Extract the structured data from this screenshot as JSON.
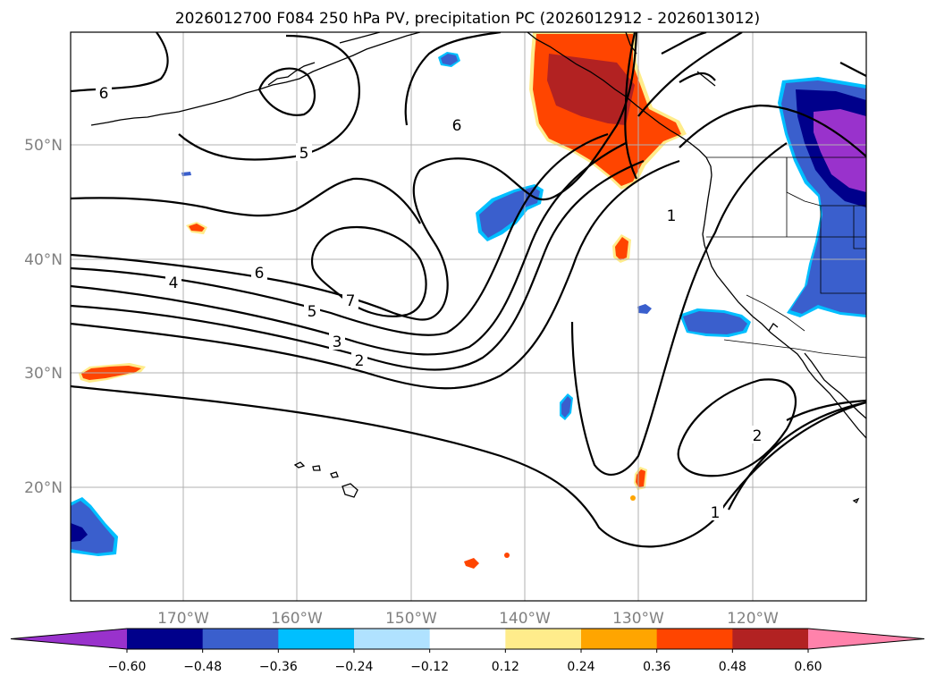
{
  "title": "2026012700 F084 250 hPa PV, precipitation PC (2026012912 - 2026013012)",
  "lat_labels": [
    "50°N",
    "40°N",
    "30°N",
    "20°N"
  ],
  "lon_labels": [
    "170°W",
    "160°W",
    "150°W",
    "140°W",
    "130°W",
    "120°W"
  ],
  "colorbar": {
    "ticks": [
      "−0.60",
      "−0.48",
      "−0.36",
      "−0.24",
      "−0.12",
      "0.12",
      "0.24",
      "0.36",
      "0.48",
      "0.60"
    ],
    "colors": [
      "#9932cc",
      "#00008b",
      "#3a5fcd",
      "#00bfff",
      "#b0e2ff",
      "#ffffff",
      "#ffec8b",
      "#ffa500",
      "#ff4500",
      "#b22222",
      "#ff82ab"
    ]
  },
  "contour_labels": [
    "6",
    "5",
    "6",
    "4",
    "6",
    "7",
    "5",
    "3",
    "2",
    "1",
    "2",
    "1"
  ]
}
